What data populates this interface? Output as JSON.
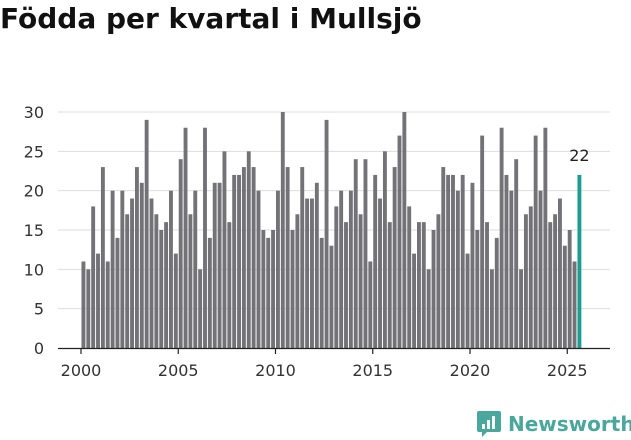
{
  "chart_data": {
    "type": "bar",
    "title": "Födda per kvartal i Mullsjö",
    "xlabel": "",
    "ylabel": "",
    "ylim": [
      0,
      30
    ],
    "yticks": [
      0,
      5,
      10,
      15,
      20,
      25,
      30
    ],
    "xticks": [
      2000,
      2005,
      2010,
      2015,
      2020,
      2025
    ],
    "first_period": 2000.0,
    "period_step": 0.25,
    "values": [
      11,
      10,
      18,
      12,
      23,
      11,
      20,
      14,
      20,
      17,
      19,
      23,
      21,
      29,
      19,
      17,
      15,
      16,
      20,
      12,
      24,
      28,
      17,
      20,
      10,
      28,
      14,
      21,
      21,
      25,
      16,
      22,
      22,
      23,
      25,
      23,
      20,
      15,
      14,
      15,
      20,
      30,
      23,
      15,
      17,
      23,
      19,
      19,
      21,
      14,
      29,
      13,
      18,
      20,
      16,
      20,
      24,
      17,
      24,
      11,
      22,
      19,
      25,
      16,
      23,
      27,
      30,
      18,
      12,
      16,
      16,
      10,
      15,
      17,
      23,
      22,
      22,
      20,
      22,
      12,
      21,
      15,
      27,
      16,
      10,
      14,
      28,
      22,
      20,
      24,
      10,
      17,
      18,
      27,
      20,
      28,
      16,
      17,
      19,
      13,
      15,
      11,
      22
    ],
    "highlight_index": 102,
    "highlight_label": "22",
    "bar_color": "#737276",
    "highlight_color": "#1a9e92",
    "grid": true
  },
  "brand": {
    "name": "Newsworthy",
    "icon": "newsworthy-logo-icon",
    "color": "#4aa79c"
  }
}
